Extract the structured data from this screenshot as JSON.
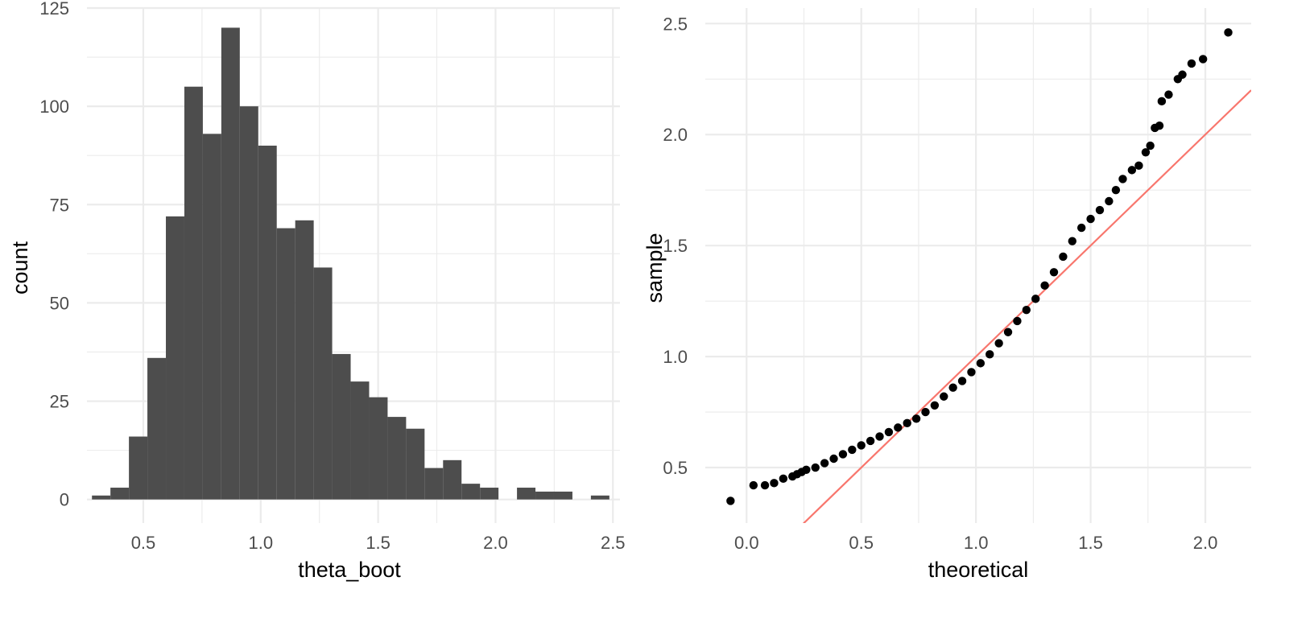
{
  "chart_data": [
    {
      "type": "bar",
      "subtype": "histogram",
      "xlabel": "theta_boot",
      "ylabel": "count",
      "xlim": [
        0.26,
        2.53
      ],
      "ylim": [
        -6,
        125
      ],
      "x_ticks": [
        0.5,
        1.0,
        1.5,
        2.0,
        2.5
      ],
      "x_tick_labels": [
        "0.5",
        "1.0",
        "1.5",
        "2.0",
        "2.5"
      ],
      "y_ticks": [
        0,
        25,
        50,
        75,
        100,
        125
      ],
      "y_tick_labels": [
        "0",
        "25",
        "50",
        "75",
        "100",
        "125"
      ],
      "grid": true,
      "bar_color": "#4d4d4d",
      "bin_width": 0.0787,
      "bins": [
        {
          "x0": 0.2813,
          "x1": 0.36,
          "count": 1
        },
        {
          "x0": 0.36,
          "x1": 0.4387,
          "count": 3
        },
        {
          "x0": 0.4387,
          "x1": 0.5174,
          "count": 16
        },
        {
          "x0": 0.5174,
          "x1": 0.5961,
          "count": 36
        },
        {
          "x0": 0.5961,
          "x1": 0.6748,
          "count": 72
        },
        {
          "x0": 0.6748,
          "x1": 0.7535,
          "count": 105
        },
        {
          "x0": 0.7535,
          "x1": 0.8322,
          "count": 93
        },
        {
          "x0": 0.8322,
          "x1": 0.9109,
          "count": 120
        },
        {
          "x0": 0.9109,
          "x1": 0.9896,
          "count": 100
        },
        {
          "x0": 0.9896,
          "x1": 1.0683,
          "count": 90
        },
        {
          "x0": 1.0683,
          "x1": 1.147,
          "count": 69
        },
        {
          "x0": 1.147,
          "x1": 1.2257,
          "count": 71
        },
        {
          "x0": 1.2257,
          "x1": 1.3044,
          "count": 59
        },
        {
          "x0": 1.3044,
          "x1": 1.3831,
          "count": 37
        },
        {
          "x0": 1.3831,
          "x1": 1.4618,
          "count": 30
        },
        {
          "x0": 1.4618,
          "x1": 1.5405,
          "count": 26
        },
        {
          "x0": 1.5405,
          "x1": 1.6192,
          "count": 21
        },
        {
          "x0": 1.6192,
          "x1": 1.6979,
          "count": 18
        },
        {
          "x0": 1.6979,
          "x1": 1.7766,
          "count": 8
        },
        {
          "x0": 1.7766,
          "x1": 1.8553,
          "count": 10
        },
        {
          "x0": 1.8553,
          "x1": 1.934,
          "count": 4
        },
        {
          "x0": 1.934,
          "x1": 2.0127,
          "count": 3
        },
        {
          "x0": 2.0127,
          "x1": 2.0914,
          "count": 0
        },
        {
          "x0": 2.0914,
          "x1": 2.1701,
          "count": 3
        },
        {
          "x0": 2.1701,
          "x1": 2.2488,
          "count": 2
        },
        {
          "x0": 2.2488,
          "x1": 2.3275,
          "count": 2
        },
        {
          "x0": 2.3275,
          "x1": 2.4062,
          "count": 0
        },
        {
          "x0": 2.4062,
          "x1": 2.4849,
          "count": 1
        }
      ]
    },
    {
      "type": "scatter",
      "subtype": "qq-plot",
      "xlabel": "theoretical",
      "ylabel": "sample",
      "xlim": [
        -0.18,
        2.2
      ],
      "ylim": [
        0.25,
        2.57
      ],
      "x_ticks": [
        0.0,
        0.5,
        1.0,
        1.5,
        2.0
      ],
      "x_tick_labels": [
        "0.0",
        "0.5",
        "1.0",
        "1.5",
        "2.0"
      ],
      "y_ticks": [
        0.5,
        1.0,
        1.5,
        2.0,
        2.5
      ],
      "y_tick_labels": [
        "0.5",
        "1.0",
        "1.5",
        "2.0",
        "2.5"
      ],
      "grid": true,
      "point_color": "#000000",
      "reference_line": {
        "color": "#f8766d",
        "slope": 1,
        "intercept": 0
      },
      "points": [
        [
          -0.07,
          0.35
        ],
        [
          0.03,
          0.42
        ],
        [
          0.08,
          0.42
        ],
        [
          0.12,
          0.43
        ],
        [
          0.16,
          0.45
        ],
        [
          0.2,
          0.46
        ],
        [
          0.22,
          0.47
        ],
        [
          0.24,
          0.48
        ],
        [
          0.26,
          0.49
        ],
        [
          0.3,
          0.5
        ],
        [
          0.34,
          0.52
        ],
        [
          0.38,
          0.54
        ],
        [
          0.42,
          0.56
        ],
        [
          0.46,
          0.58
        ],
        [
          0.5,
          0.6
        ],
        [
          0.54,
          0.62
        ],
        [
          0.58,
          0.64
        ],
        [
          0.62,
          0.66
        ],
        [
          0.66,
          0.68
        ],
        [
          0.7,
          0.7
        ],
        [
          0.74,
          0.72
        ],
        [
          0.78,
          0.75
        ],
        [
          0.82,
          0.78
        ],
        [
          0.86,
          0.82
        ],
        [
          0.9,
          0.86
        ],
        [
          0.94,
          0.89
        ],
        [
          0.98,
          0.93
        ],
        [
          1.02,
          0.97
        ],
        [
          1.06,
          1.01
        ],
        [
          1.1,
          1.06
        ],
        [
          1.14,
          1.11
        ],
        [
          1.18,
          1.16
        ],
        [
          1.22,
          1.21
        ],
        [
          1.26,
          1.26
        ],
        [
          1.3,
          1.32
        ],
        [
          1.34,
          1.38
        ],
        [
          1.38,
          1.45
        ],
        [
          1.42,
          1.52
        ],
        [
          1.46,
          1.58
        ],
        [
          1.5,
          1.62
        ],
        [
          1.54,
          1.66
        ],
        [
          1.58,
          1.7
        ],
        [
          1.61,
          1.75
        ],
        [
          1.64,
          1.8
        ],
        [
          1.68,
          1.84
        ],
        [
          1.71,
          1.86
        ],
        [
          1.74,
          1.92
        ],
        [
          1.76,
          1.95
        ],
        [
          1.78,
          2.03
        ],
        [
          1.8,
          2.04
        ],
        [
          1.81,
          2.15
        ],
        [
          1.84,
          2.18
        ],
        [
          1.88,
          2.25
        ],
        [
          1.9,
          2.27
        ],
        [
          1.94,
          2.32
        ],
        [
          1.99,
          2.34
        ],
        [
          2.1,
          2.46
        ]
      ]
    }
  ]
}
